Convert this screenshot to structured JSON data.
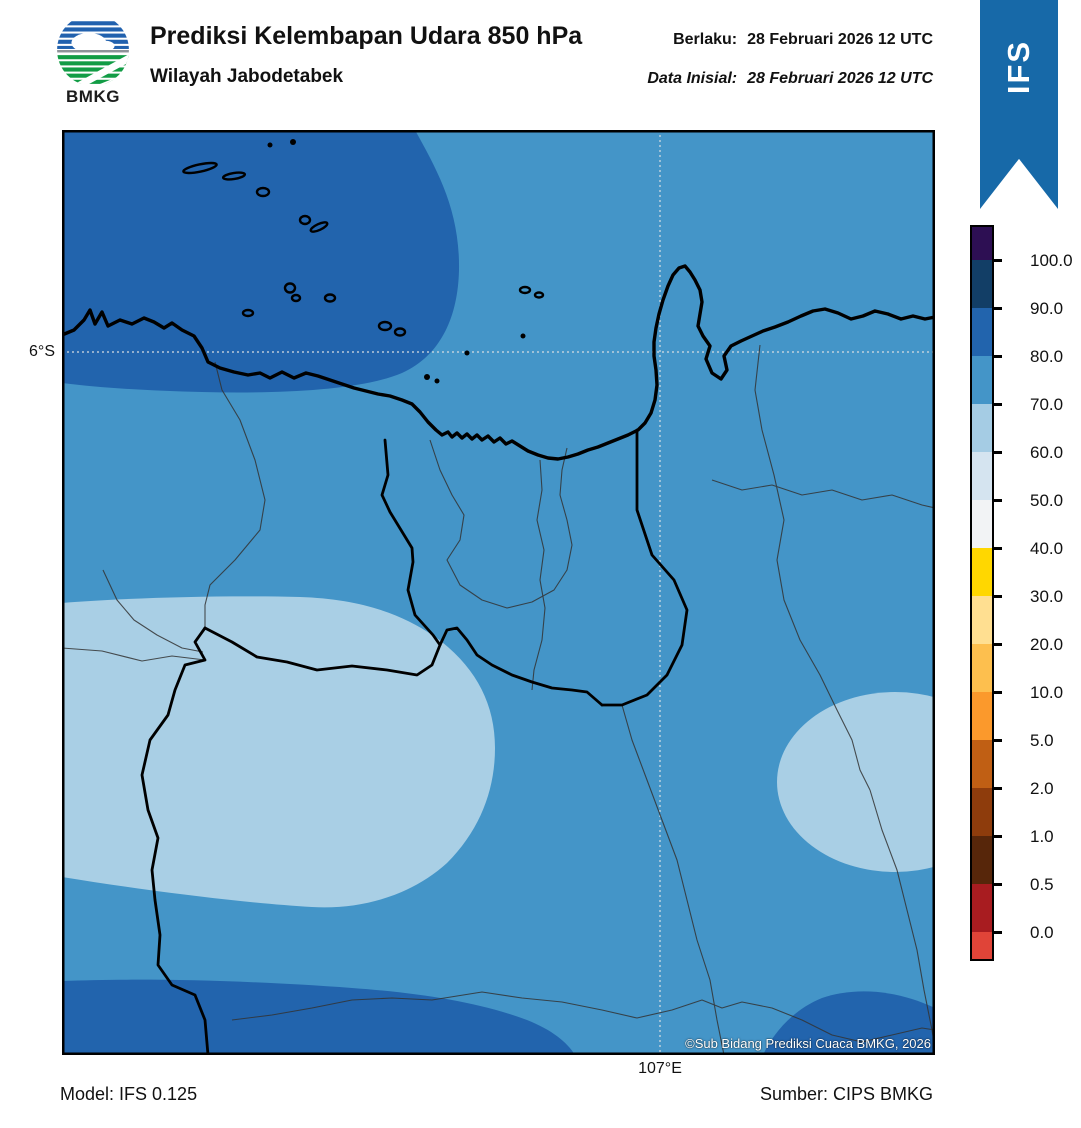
{
  "header": {
    "agency": "BMKG",
    "title": "Prediksi Kelembapan Udara 850 hPa",
    "region": "Wilayah Jabodetabek",
    "valid": {
      "label": "Berlaku:",
      "value": "28 Februari 2026 12 UTC"
    },
    "initial": {
      "label": "Data Inisial:",
      "value": "28 Februari 2026 12 UTC"
    },
    "model_ribbon": "IFS"
  },
  "map": {
    "y_axis_label": "6°S",
    "x_axis_label": "107°E",
    "copyright": "©Sub Bidang Prediksi Cuaca BMKG, 2026",
    "fill_colors": {
      "rh_80_90": "#2264ad",
      "rh_70_80": "#4495c8",
      "rh_60_70": "#a9cfe5"
    }
  },
  "colorbar": {
    "tick_labels": [
      "100.0",
      "90.0",
      "80.0",
      "70.0",
      "60.0",
      "50.0",
      "40.0",
      "30.0",
      "20.0",
      "10.0",
      "5.0",
      "2.0",
      "1.0",
      "0.5",
      "0.0"
    ],
    "segment_colors_top_to_bottom": [
      "#2d0f53",
      "#123e66",
      "#2264ad",
      "#4495c8",
      "#a5cce4",
      "#d5e4f0",
      "#f2f3f5",
      "#ffd700",
      "#ffdf91",
      "#fdbf4e",
      "#fb992c",
      "#c05f14",
      "#8e3c0c",
      "#57260a",
      "#a81c20",
      "#e04438"
    ]
  },
  "footer": {
    "model": "Model: IFS 0.125",
    "source": "Sumber: CIPS BMKG"
  },
  "chart_data": {
    "type": "heatmap",
    "title": "Prediksi Kelembapan Udara 850 hPa - Wilayah Jabodetabek",
    "units": "percent relative humidity",
    "scale_ticks": [
      100.0,
      90.0,
      80.0,
      70.0,
      60.0,
      50.0,
      40.0,
      30.0,
      20.0,
      10.0,
      5.0,
      2.0,
      1.0,
      0.5,
      0.0
    ],
    "gridlines": {
      "latitude": "6°S",
      "longitude": "107°E"
    },
    "regions": [
      {
        "area": "northwest sea (Java Sea) blob",
        "rh_percent": "80-90"
      },
      {
        "area": "background / most land and east sea",
        "rh_percent": "70-80"
      },
      {
        "area": "west-central inland blob",
        "rh_percent": "60-70"
      },
      {
        "area": "east oval near right edge",
        "rh_percent": "60-70"
      },
      {
        "area": "bottom-left band along south edge",
        "rh_percent": "80-90"
      },
      {
        "area": "bottom-right corner blob",
        "rh_percent": "80-90"
      }
    ]
  }
}
